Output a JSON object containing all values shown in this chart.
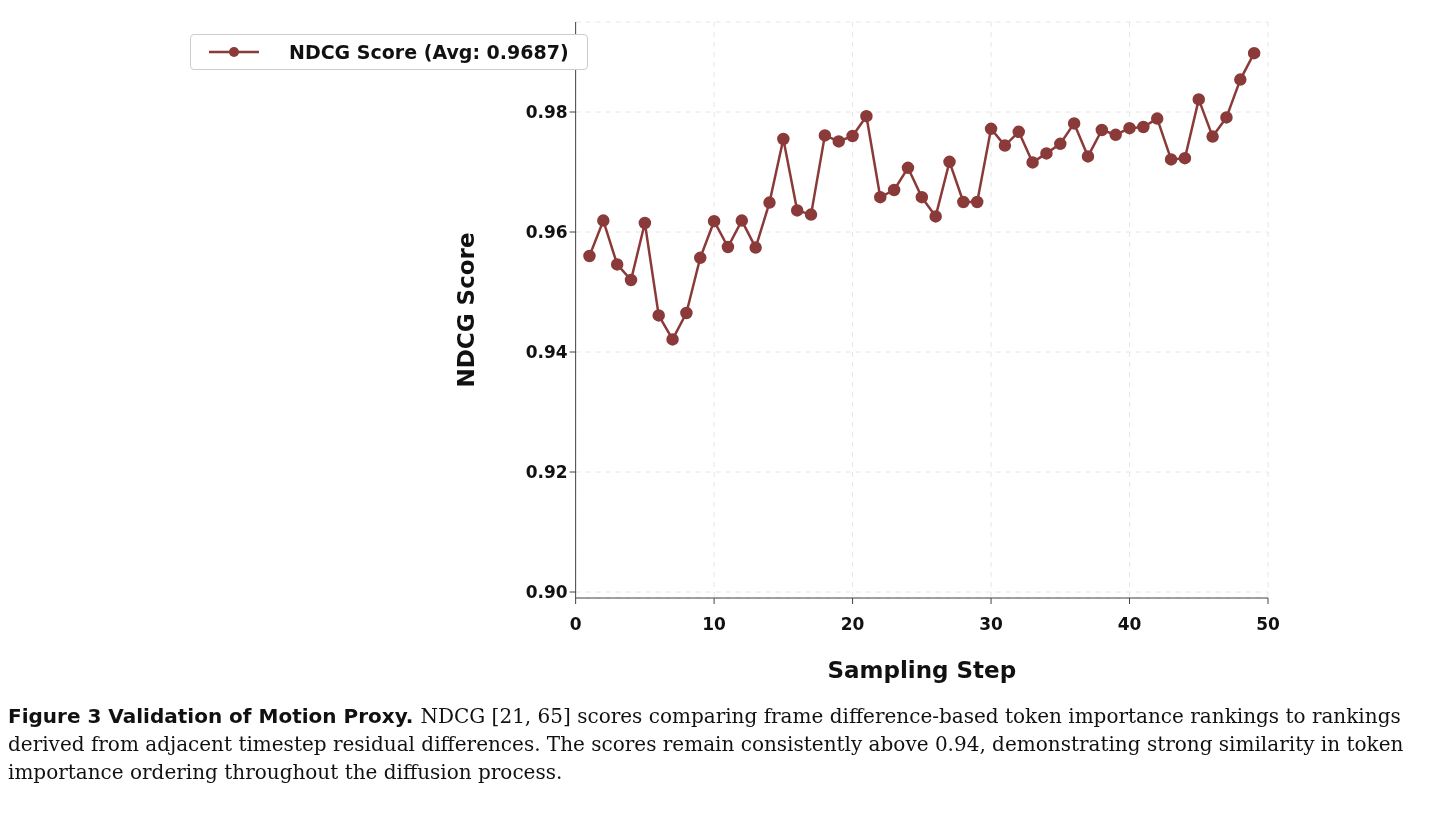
{
  "chart_data": {
    "type": "line",
    "xlabel": "Sampling Step",
    "ylabel": "NDCG Score",
    "x": [
      1,
      2,
      3,
      4,
      5,
      6,
      7,
      8,
      9,
      10,
      11,
      12,
      13,
      14,
      15,
      16,
      17,
      18,
      19,
      20,
      21,
      22,
      23,
      24,
      25,
      26,
      27,
      28,
      29,
      30,
      31,
      32,
      33,
      34,
      35,
      36,
      37,
      38,
      39,
      40,
      41,
      42,
      43,
      44,
      45,
      46,
      47,
      48,
      49
    ],
    "series": [
      {
        "name": "NDCG Score (Avg: 0.9687)",
        "color": "#8b3a3a",
        "values": [
          0.956,
          0.9619,
          0.9546,
          0.952,
          0.9615,
          0.9461,
          0.9421,
          0.9465,
          0.9557,
          0.9618,
          0.9575,
          0.9619,
          0.9574,
          0.9649,
          0.9755,
          0.9636,
          0.9629,
          0.9761,
          0.9751,
          0.976,
          0.9793,
          0.9658,
          0.967,
          0.9707,
          0.9658,
          0.9626,
          0.9717,
          0.965,
          0.965,
          0.9772,
          0.9744,
          0.9767,
          0.9716,
          0.9731,
          0.9747,
          0.9781,
          0.9726,
          0.977,
          0.9762,
          0.9773,
          0.9775,
          0.9789,
          0.9721,
          0.9723,
          0.9821,
          0.9759,
          0.9791,
          0.9854,
          0.9898
        ]
      }
    ],
    "xlim": [
      0,
      50
    ],
    "xticks": [
      0,
      10,
      20,
      30,
      40,
      50
    ],
    "ylim": [
      0.899,
      0.995
    ],
    "yticks": [
      {
        "value": 0.9,
        "label": "0.90"
      },
      0.92,
      0.94,
      0.96,
      0.98
    ],
    "grid": true,
    "legend": "top left",
    "marker": "circle",
    "line_style": "solid",
    "annotations": [
      "Figure 3  Validation of Motion Proxy.",
      "NDCG [21, 65] scores comparing frame difference-based token importance rankings to rankings derived from adjacent timestep residual differences. The scores remain consistently above 0.94, demonstrating strong similarity in token importance ordering throughout the diffusion process."
    ]
  }
}
